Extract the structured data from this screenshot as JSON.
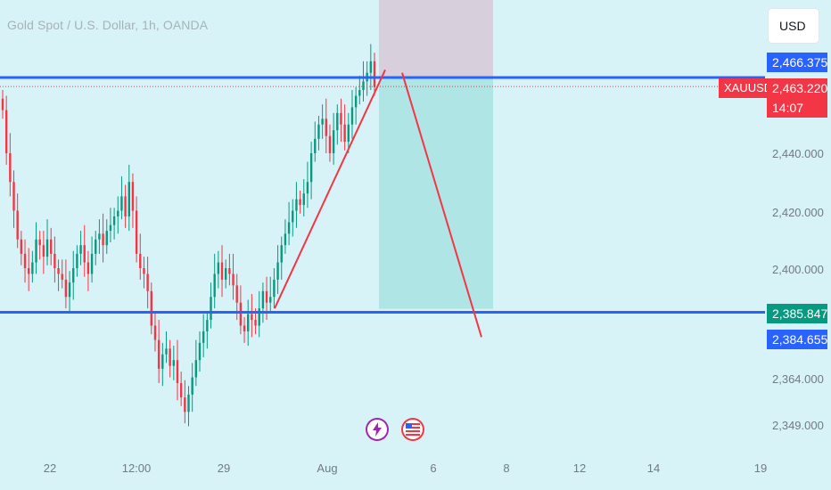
{
  "header": {
    "title": "Gold Spot / U.S. Dollar, 1h, OANDA"
  },
  "toolbar": {
    "currency_button": "USD"
  },
  "symbol_tag": "XAUUSD",
  "price_labels": {
    "resistance": "2,466.375",
    "current": "2,463.220",
    "countdown": "14:07",
    "target_top": "2,385.847",
    "support": "2,384.655"
  },
  "colors": {
    "background": "#d8f3f7",
    "level_line": "#2962ff",
    "trend_line": "#f23645",
    "up_candle": "#089981",
    "down_candle": "#f23645",
    "stop_zone": "#d7cfdc",
    "target_zone": "#b0e5e6",
    "current_price_tag": "#f23645",
    "target_tag": "#089981",
    "level_tag": "#2962ff"
  },
  "event_icons": [
    "lightning-icon",
    "us-flag-icon"
  ],
  "chart_data": {
    "type": "candlestick",
    "title": "Gold Spot / U.S. Dollar, 1h, OANDA",
    "y_axis": {
      "ticks": [
        "2,440.000",
        "2,420.000",
        "2,400.000",
        "2,364.000",
        "2,349.000"
      ],
      "range": [
        2340,
        2490
      ]
    },
    "x_axis": {
      "ticks": [
        "22",
        "12:00",
        "29",
        "Aug",
        "6",
        "8",
        "12",
        "14",
        "19"
      ]
    },
    "horizontal_levels": [
      {
        "name": "resistance",
        "price": 2466.375
      },
      {
        "name": "support",
        "price": 2384.655
      }
    ],
    "current_price": 2463.22,
    "trend_line": [
      {
        "time": "Jul 31",
        "price": 2386
      },
      {
        "time": "Aug 2",
        "price": 2469
      }
    ],
    "projection_line": [
      {
        "time": "Aug 2",
        "price": 2468
      },
      {
        "time": "Aug 7",
        "price": 2376
      }
    ],
    "short_position": {
      "entry": 2466.375,
      "stop": 2490,
      "target": 2385.847
    },
    "candles_close": [
      2455,
      2440,
      2430,
      2420,
      2410,
      2405,
      2400,
      2398,
      2402,
      2410,
      2408,
      2404,
      2410,
      2405,
      2400,
      2398,
      2396,
      2390,
      2395,
      2400,
      2405,
      2408,
      2402,
      2398,
      2405,
      2410,
      2412,
      2408,
      2413,
      2415,
      2418,
      2420,
      2425,
      2418,
      2430,
      2420,
      2405,
      2400,
      2398,
      2392,
      2380,
      2375,
      2365,
      2370,
      2372,
      2366,
      2368,
      2360,
      2355,
      2350,
      2356,
      2362,
      2368,
      2374,
      2378,
      2382,
      2390,
      2398,
      2402,
      2396,
      2400,
      2398,
      2394,
      2388,
      2380,
      2378,
      2384,
      2382,
      2380,
      2386,
      2392,
      2388,
      2390,
      2396,
      2402,
      2408,
      2412,
      2416,
      2420,
      2424,
      2422,
      2426,
      2430,
      2440,
      2445,
      2450,
      2452,
      2446,
      2440,
      2448,
      2454,
      2450,
      2444,
      2450,
      2456,
      2460,
      2462,
      2465,
      2468,
      2472,
      2463
    ]
  }
}
